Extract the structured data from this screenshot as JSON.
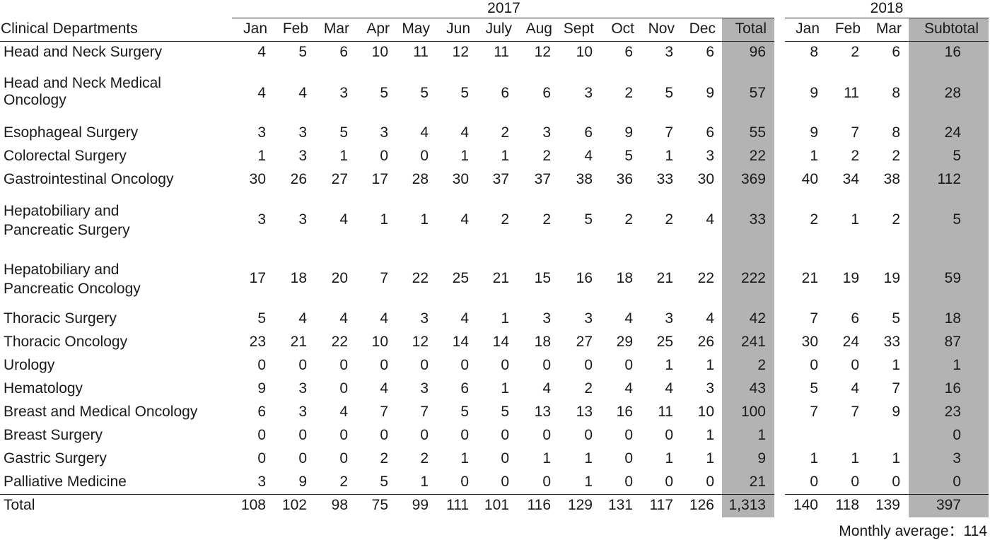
{
  "year_2017": "2017",
  "year_2018": "2018",
  "header": {
    "department": "Clinical Departments",
    "months_2017": [
      "Jan",
      "Feb",
      "Mar",
      "Apr",
      "May",
      "Jun",
      "July",
      "Aug",
      "Sept",
      "Oct",
      "Nov",
      "Dec"
    ],
    "total": "Total",
    "months_2018": [
      "Jan",
      "Feb",
      "Mar"
    ],
    "subtotal": "Subtotal"
  },
  "rows": [
    {
      "department": "Head and Neck Surgery",
      "m2017": [
        "4",
        "5",
        "6",
        "10",
        "11",
        "12",
        "11",
        "12",
        "10",
        "6",
        "3",
        "6"
      ],
      "total": "96",
      "m2018": [
        "8",
        "2",
        "6"
      ],
      "subtotal": "16"
    },
    {
      "department": "Head and Neck Medical Oncology",
      "m2017": [
        "4",
        "4",
        "3",
        "5",
        "5",
        "5",
        "6",
        "6",
        "3",
        "2",
        "5",
        "9"
      ],
      "total": "57",
      "m2018": [
        "9",
        "11",
        "8"
      ],
      "subtotal": "28"
    },
    {
      "department": "Esophageal Surgery",
      "m2017": [
        "3",
        "3",
        "5",
        "3",
        "4",
        "4",
        "2",
        "3",
        "6",
        "9",
        "7",
        "6"
      ],
      "total": "55",
      "m2018": [
        "9",
        "7",
        "8"
      ],
      "subtotal": "24"
    },
    {
      "department": "Colorectal Surgery",
      "m2017": [
        "1",
        "3",
        "1",
        "0",
        "0",
        "1",
        "1",
        "2",
        "4",
        "5",
        "1",
        "3"
      ],
      "total": "22",
      "m2018": [
        "1",
        "2",
        "2"
      ],
      "subtotal": "5"
    },
    {
      "department": "Gastrointestinal Oncology",
      "m2017": [
        "30",
        "26",
        "27",
        "17",
        "28",
        "30",
        "37",
        "37",
        "38",
        "36",
        "33",
        "30"
      ],
      "total": "369",
      "m2018": [
        "40",
        "34",
        "38"
      ],
      "subtotal": "112"
    },
    {
      "department": "Hepatobiliary and Pancreatic Surgery",
      "m2017": [
        "3",
        "3",
        "4",
        "1",
        "1",
        "4",
        "2",
        "2",
        "5",
        "2",
        "2",
        "4"
      ],
      "total": "33",
      "m2018": [
        "2",
        "1",
        "2"
      ],
      "subtotal": "5"
    },
    {
      "department": "Hepatobiliary and Pancreatic Oncology",
      "m2017": [
        "17",
        "18",
        "20",
        "7",
        "22",
        "25",
        "21",
        "15",
        "16",
        "18",
        "21",
        "22"
      ],
      "total": "222",
      "m2018": [
        "21",
        "19",
        "19"
      ],
      "subtotal": "59"
    },
    {
      "department": "Thoracic Surgery",
      "m2017": [
        "5",
        "4",
        "4",
        "4",
        "3",
        "4",
        "1",
        "3",
        "3",
        "4",
        "3",
        "4"
      ],
      "total": "42",
      "m2018": [
        "7",
        "6",
        "5"
      ],
      "subtotal": "18"
    },
    {
      "department": "Thoracic Oncology",
      "m2017": [
        "23",
        "21",
        "22",
        "10",
        "12",
        "14",
        "14",
        "18",
        "27",
        "29",
        "25",
        "26"
      ],
      "total": "241",
      "m2018": [
        "30",
        "24",
        "33"
      ],
      "subtotal": "87"
    },
    {
      "department": "Urology",
      "m2017": [
        "0",
        "0",
        "0",
        "0",
        "0",
        "0",
        "0",
        "0",
        "0",
        "0",
        "1",
        "1"
      ],
      "total": "2",
      "m2018": [
        "0",
        "0",
        "1"
      ],
      "subtotal": "1"
    },
    {
      "department": "Hematology",
      "m2017": [
        "9",
        "3",
        "0",
        "4",
        "3",
        "6",
        "1",
        "4",
        "2",
        "4",
        "4",
        "3"
      ],
      "total": "43",
      "m2018": [
        "5",
        "4",
        "7"
      ],
      "subtotal": "16"
    },
    {
      "department": "Breast and Medical Oncology",
      "m2017": [
        "6",
        "3",
        "4",
        "7",
        "7",
        "5",
        "5",
        "13",
        "13",
        "16",
        "11",
        "10"
      ],
      "total": "100",
      "m2018": [
        "7",
        "7",
        "9"
      ],
      "subtotal": "23"
    },
    {
      "department": "Breast Surgery",
      "m2017": [
        "0",
        "0",
        "0",
        "0",
        "0",
        "0",
        "0",
        "0",
        "0",
        "0",
        "0",
        "1"
      ],
      "total": "1",
      "m2018": [
        "",
        "",
        ""
      ],
      "subtotal": "0"
    },
    {
      "department": "Gastric Surgery",
      "m2017": [
        "0",
        "0",
        "0",
        "2",
        "2",
        "1",
        "0",
        "1",
        "1",
        "0",
        "1",
        "1"
      ],
      "total": "9",
      "m2018": [
        "1",
        "1",
        "1"
      ],
      "subtotal": "3"
    },
    {
      "department": "Palliative Medicine",
      "m2017": [
        "3",
        "9",
        "2",
        "5",
        "1",
        "0",
        "0",
        "0",
        "1",
        "0",
        "0",
        "0"
      ],
      "total": "21",
      "m2018": [
        "0",
        "0",
        "0"
      ],
      "subtotal": "0"
    }
  ],
  "totals": {
    "label": "Total",
    "m2017": [
      "108",
      "102",
      "98",
      "75",
      "99",
      "111",
      "101",
      "116",
      "129",
      "131",
      "117",
      "126"
    ],
    "total": "1,313",
    "m2018": [
      "140",
      "118",
      "139"
    ],
    "subtotal": "397"
  },
  "footnote": "Monthly average：114"
}
